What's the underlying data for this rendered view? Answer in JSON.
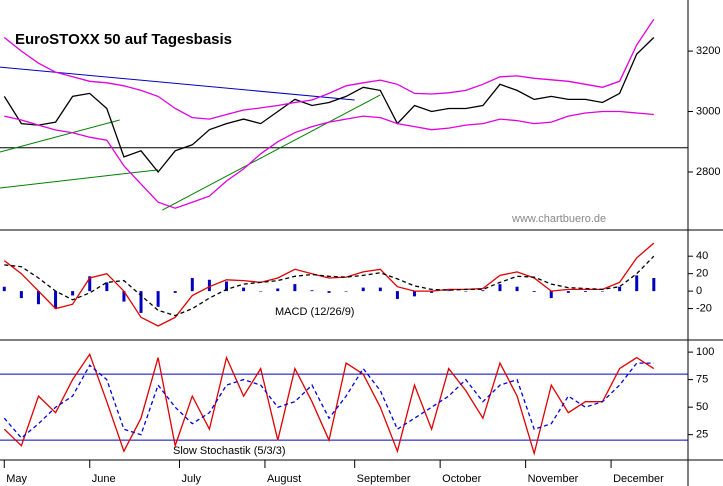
{
  "chart_data": [
    {
      "type": "line",
      "title": "EuroSTOXX 50 auf Tagesbasis",
      "annotation": "www.chartbuero.de",
      "x": [
        0,
        4,
        8,
        12,
        16,
        20,
        24,
        28,
        32,
        36,
        40,
        44,
        48,
        52,
        56,
        60,
        64,
        68,
        72,
        76,
        80,
        84,
        88,
        92,
        96,
        100,
        104,
        108,
        112,
        116,
        120,
        124,
        128,
        132,
        136,
        140,
        144,
        148,
        152
      ],
      "xlim": [
        -1,
        160
      ],
      "ylim": [
        2608,
        3369
      ],
      "yticks": [
        2800,
        3000,
        3200
      ],
      "series": [
        {
          "color": "#000000",
          "values": [
            3050,
            2960,
            2955,
            2965,
            3050,
            3060,
            3010,
            2850,
            2870,
            2800,
            2870,
            2890,
            2940,
            2960,
            2975,
            2960,
            3000,
            3040,
            3020,
            3030,
            3050,
            3080,
            3070,
            2960,
            3020,
            3000,
            3010,
            3010,
            3020,
            3090,
            3070,
            3040,
            3050,
            3040,
            3040,
            3030,
            3060,
            3190,
            3245
          ]
        },
        {
          "color": "#e000e0",
          "values": [
            3245,
            3200,
            3160,
            3130,
            3115,
            3100,
            3095,
            3085,
            3070,
            3050,
            3010,
            2980,
            2975,
            2990,
            3005,
            3012,
            3020,
            3030,
            3038,
            3060,
            3085,
            3095,
            3104,
            3090,
            3060,
            3058,
            3062,
            3070,
            3090,
            3115,
            3118,
            3110,
            3105,
            3100,
            3090,
            3080,
            3100,
            3220,
            3305
          ]
        },
        {
          "color": "#e000e0",
          "values": [
            2985,
            2972,
            2955,
            2939,
            2930,
            2915,
            2905,
            2820,
            2760,
            2700,
            2680,
            2700,
            2720,
            2770,
            2810,
            2860,
            2900,
            2930,
            2950,
            2965,
            2975,
            2985,
            2980,
            2960,
            2950,
            2940,
            2945,
            2955,
            2960,
            2975,
            2970,
            2960,
            2965,
            2985,
            2995,
            3000,
            3000,
            2995,
            2990
          ]
        }
      ],
      "reference_lines": [
        {
          "value": 2880,
          "color": "#000000"
        }
      ],
      "trend_lines": [
        {
          "color": "#0000c0",
          "x": [
            -1,
            82
          ],
          "y": [
            3147,
            3038
          ]
        },
        {
          "color": "#008000",
          "x": [
            -1,
            27
          ],
          "y": [
            2866,
            2972
          ]
        },
        {
          "color": "#008000",
          "x": [
            -1,
            36
          ],
          "y": [
            2747,
            2807
          ]
        },
        {
          "color": "#008000",
          "x": [
            37,
            88
          ],
          "y": [
            2674,
            3055
          ]
        }
      ]
    },
    {
      "type": "line",
      "title": "MACD (12/26/9)",
      "x": [
        0,
        4,
        8,
        12,
        16,
        20,
        24,
        28,
        32,
        36,
        40,
        44,
        48,
        52,
        56,
        60,
        64,
        68,
        72,
        76,
        80,
        84,
        88,
        92,
        96,
        100,
        104,
        108,
        112,
        116,
        120,
        124,
        128,
        132,
        136,
        140,
        144,
        148,
        152
      ],
      "xlim": [
        -1,
        160
      ],
      "ylim": [
        -56,
        70
      ],
      "yticks": [
        -20,
        0,
        20,
        40
      ],
      "series": [
        {
          "type": "bar",
          "color": "#0000c0",
          "values": [
            5,
            -8,
            -15,
            -20,
            -5,
            17,
            10,
            -12,
            -25,
            -18,
            -2,
            15,
            13,
            11,
            4,
            0,
            3,
            8,
            1,
            -2,
            0,
            4,
            4,
            -9,
            -6,
            -2,
            1,
            0,
            1,
            8,
            5,
            -1,
            -8,
            -2,
            -1,
            0,
            5,
            18,
            15
          ]
        },
        {
          "color": "#e00000",
          "values": [
            35,
            20,
            0,
            -20,
            -15,
            15,
            20,
            0,
            -30,
            -40,
            -30,
            -5,
            5,
            13,
            12,
            10,
            15,
            25,
            20,
            15,
            16,
            22,
            25,
            5,
            0,
            0,
            2,
            2,
            3,
            18,
            22,
            15,
            0,
            2,
            2,
            2,
            10,
            38,
            55
          ]
        },
        {
          "color": "#000000",
          "dash": true,
          "values": [
            30,
            28,
            15,
            0,
            -10,
            -2,
            10,
            12,
            -5,
            -22,
            -28,
            -20,
            -8,
            2,
            8,
            10,
            12,
            17,
            19,
            17,
            16,
            18,
            21,
            14,
            6,
            2,
            1,
            2,
            2,
            10,
            17,
            16,
            8,
            4,
            3,
            2,
            5,
            20,
            40
          ]
        }
      ]
    },
    {
      "type": "line",
      "title": "Slow Stochastik (5/3/3)",
      "x": [
        0,
        4,
        8,
        12,
        16,
        20,
        24,
        28,
        32,
        36,
        40,
        44,
        48,
        52,
        56,
        60,
        64,
        68,
        72,
        76,
        80,
        84,
        88,
        92,
        96,
        100,
        104,
        108,
        112,
        116,
        120,
        124,
        128,
        132,
        136,
        140,
        144,
        148,
        152
      ],
      "xlim": [
        -1,
        160
      ],
      "ylim": [
        2,
        111
      ],
      "yticks": [
        25,
        50,
        75,
        100
      ],
      "xticks": [
        {
          "value": 0,
          "label": "May"
        },
        {
          "value": 20,
          "label": "June"
        },
        {
          "value": 41,
          "label": "July"
        },
        {
          "value": 61,
          "label": "August"
        },
        {
          "value": 82,
          "label": "September"
        },
        {
          "value": 102,
          "label": "October"
        },
        {
          "value": 122,
          "label": "November"
        },
        {
          "value": 142,
          "label": "December"
        }
      ],
      "series": [
        {
          "color": "#e00000",
          "values": [
            30,
            15,
            60,
            45,
            75,
            98,
            55,
            10,
            40,
            95,
            15,
            60,
            30,
            95,
            60,
            85,
            20,
            85,
            55,
            20,
            90,
            80,
            50,
            10,
            70,
            30,
            85,
            65,
            40,
            90,
            60,
            8,
            70,
            45,
            55,
            55,
            85,
            95,
            85
          ]
        },
        {
          "color": "#0000e0",
          "dash": true,
          "values": [
            40,
            22,
            35,
            50,
            60,
            88,
            75,
            30,
            25,
            70,
            50,
            35,
            45,
            70,
            75,
            70,
            50,
            55,
            70,
            40,
            60,
            85,
            65,
            30,
            40,
            50,
            60,
            75,
            55,
            70,
            75,
            30,
            35,
            60,
            50,
            55,
            70,
            90,
            90
          ]
        }
      ],
      "reference_lines": [
        {
          "value": 20,
          "color": "#0000c0"
        },
        {
          "value": 80,
          "color": "#0000c0"
        }
      ]
    }
  ]
}
